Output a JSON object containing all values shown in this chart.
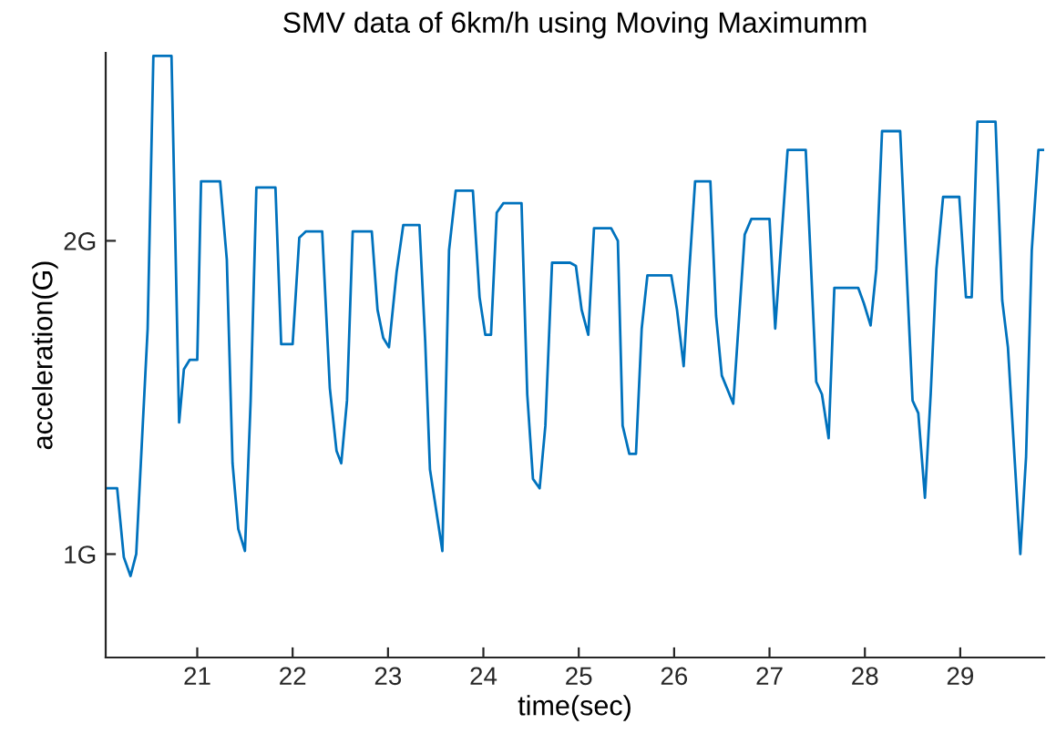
{
  "chart_data": {
    "type": "line",
    "title": "SMV data of 6km/h using Moving Maximumm",
    "xlabel": "time(sec)",
    "ylabel": "acceleration(G)",
    "x": [
      20.04,
      20.16,
      20.23,
      20.3,
      20.36,
      20.48,
      20.54,
      20.73,
      20.81,
      20.86,
      20.92,
      21.0,
      21.04,
      21.24,
      21.31,
      21.37,
      21.43,
      21.5,
      21.56,
      21.62,
      21.82,
      21.88,
      22.0,
      22.07,
      22.14,
      22.31,
      22.39,
      22.46,
      22.51,
      22.57,
      22.63,
      22.83,
      22.89,
      22.95,
      23.01,
      23.09,
      23.16,
      23.33,
      23.39,
      23.44,
      23.57,
      23.64,
      23.71,
      23.89,
      23.96,
      24.02,
      24.08,
      24.14,
      24.21,
      24.4,
      24.46,
      24.52,
      24.59,
      24.65,
      24.72,
      24.91,
      24.97,
      25.03,
      25.1,
      25.16,
      25.34,
      25.41,
      25.46,
      25.53,
      25.6,
      25.66,
      25.72,
      25.97,
      26.03,
      26.1,
      26.16,
      26.22,
      26.38,
      26.44,
      26.5,
      26.62,
      26.74,
      26.81,
      27.0,
      27.06,
      27.19,
      27.38,
      27.49,
      27.55,
      27.62,
      27.68,
      27.93,
      27.99,
      28.06,
      28.12,
      28.18,
      28.37,
      28.5,
      28.56,
      28.63,
      28.69,
      28.75,
      28.82,
      28.99,
      29.06,
      29.12,
      29.18,
      29.37,
      29.44,
      29.5,
      29.63,
      29.69,
      29.75,
      29.82,
      29.87
    ],
    "series": [
      {
        "color": "#0072bd",
        "values": [
          1.21,
          1.21,
          0.99,
          0.93,
          1.0,
          1.72,
          2.59,
          2.59,
          1.42,
          1.59,
          1.62,
          1.62,
          2.19,
          2.19,
          1.94,
          1.29,
          1.08,
          1.01,
          1.49,
          2.17,
          2.17,
          1.67,
          1.67,
          2.01,
          2.03,
          2.03,
          1.53,
          1.33,
          1.29,
          1.49,
          2.03,
          2.03,
          1.78,
          1.69,
          1.66,
          1.9,
          2.05,
          2.05,
          1.68,
          1.27,
          1.01,
          1.97,
          2.16,
          2.16,
          1.82,
          1.7,
          1.7,
          2.09,
          2.12,
          2.12,
          1.51,
          1.24,
          1.21,
          1.41,
          1.93,
          1.93,
          1.92,
          1.78,
          1.7,
          2.04,
          2.04,
          2.0,
          1.41,
          1.32,
          1.32,
          1.72,
          1.89,
          1.89,
          1.78,
          1.6,
          1.91,
          2.19,
          2.19,
          1.76,
          1.57,
          1.48,
          2.02,
          2.07,
          2.07,
          1.72,
          2.29,
          2.29,
          1.55,
          1.51,
          1.37,
          1.85,
          1.85,
          1.8,
          1.73,
          1.91,
          2.35,
          2.35,
          1.49,
          1.45,
          1.18,
          1.51,
          1.91,
          2.14,
          2.14,
          1.82,
          1.82,
          2.38,
          2.38,
          1.81,
          1.66,
          1.0,
          1.31,
          1.97,
          2.29,
          2.29
        ]
      }
    ],
    "xlim": [
      20.04,
      29.88
    ],
    "ylim": [
      0.67,
      2.6
    ],
    "xticks": [
      21,
      22,
      23,
      24,
      25,
      26,
      27,
      28,
      29
    ],
    "yticks": [
      {
        "value": 1,
        "label": "1G"
      },
      {
        "value": 2,
        "label": "2G"
      }
    ],
    "grid": false,
    "legend": false
  }
}
